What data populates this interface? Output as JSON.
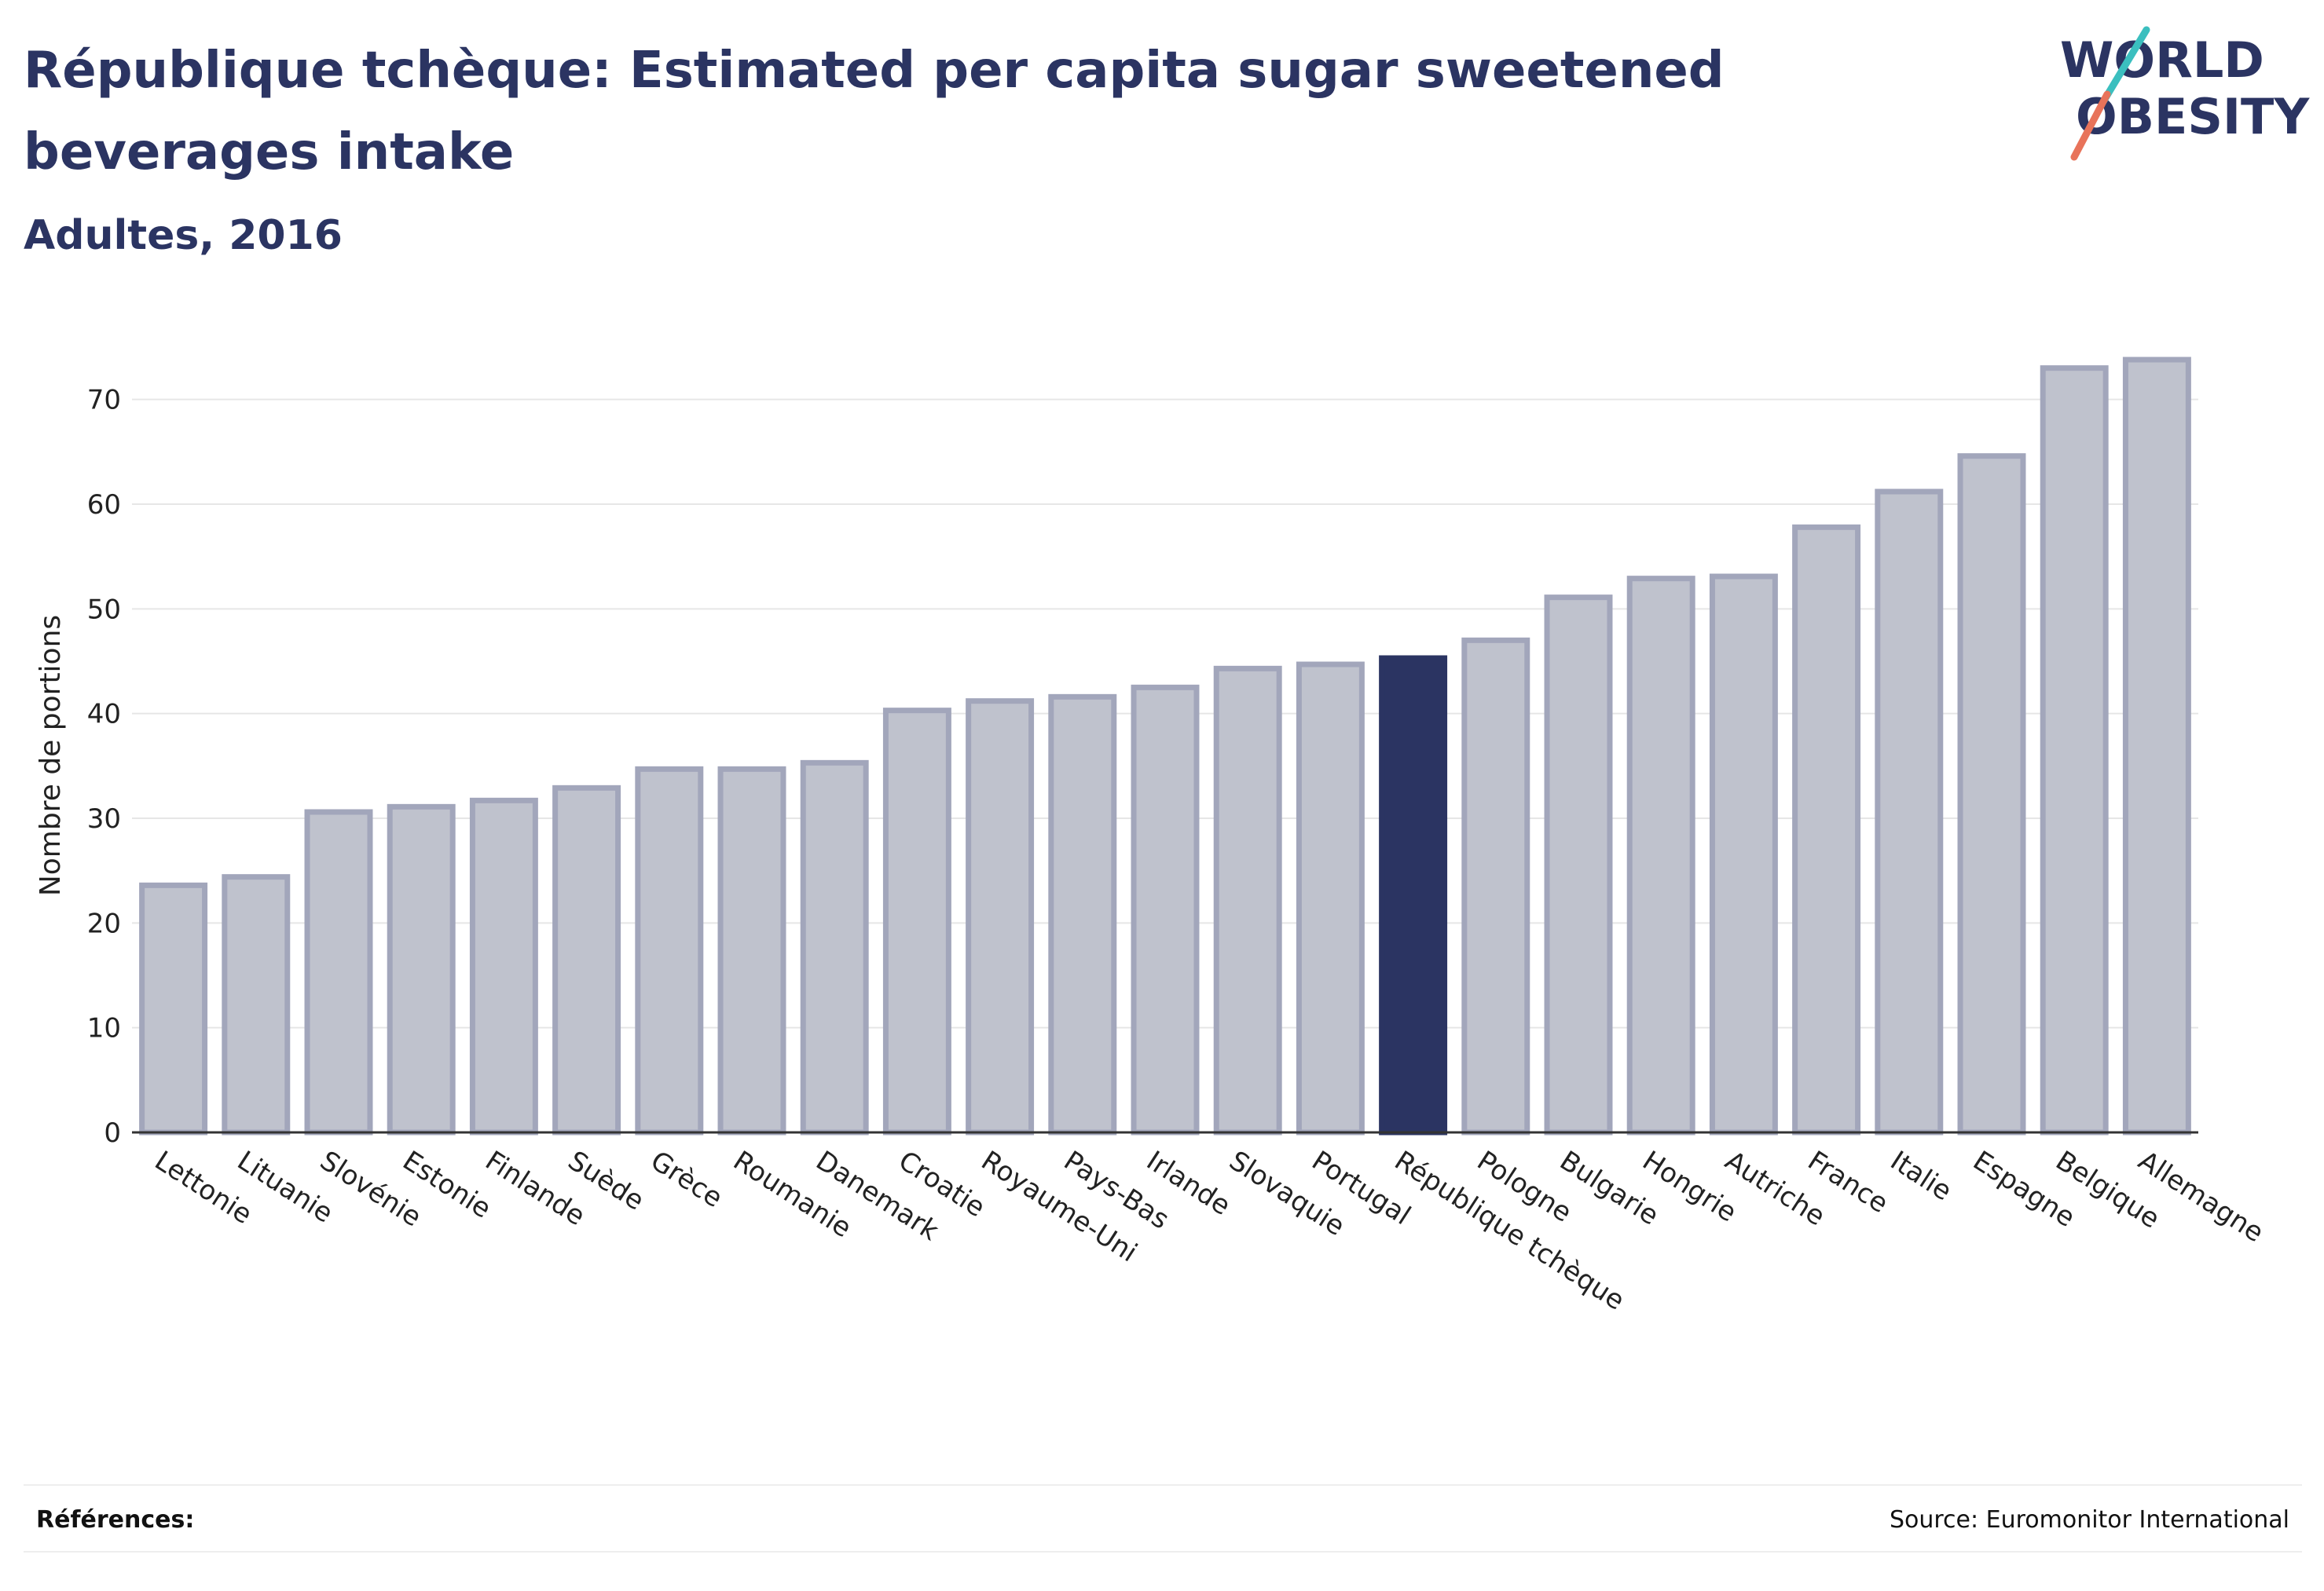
{
  "header": {
    "title": "République tchèque: Estimated per capita sugar sweetened beverages intake",
    "subtitle": "Adultes, 2016"
  },
  "logo": {
    "line1": "WORLD",
    "line2": "OBESITY",
    "text_color": "#2b3462",
    "accent_teal": "#3bbfbf",
    "accent_coral": "#e8735a"
  },
  "footer": {
    "references_label": "Références:",
    "source": "Source: Euromonitor International"
  },
  "colors": {
    "bar_fill": "#bfc2cd",
    "bar_stroke": "#a2a6bb",
    "highlight_fill": "#2b3462",
    "grid": "#e6e6e6",
    "axis": "#333333"
  },
  "chart_data": {
    "type": "bar",
    "title": "République tchèque: Estimated per capita sugar sweetened beverages intake",
    "subtitle": "Adultes, 2016",
    "xlabel": "",
    "ylabel": "Nombre de portions",
    "ylim": [
      0,
      75
    ],
    "yticks": [
      0,
      10,
      20,
      30,
      40,
      50,
      60,
      70
    ],
    "grid": true,
    "highlight": "République tchèque",
    "categories": [
      "Lettonie",
      "Lituanie",
      "Slovénie",
      "Estonie",
      "Finlande",
      "Suède",
      "Grèce",
      "Roumanie",
      "Danemark",
      "Croatie",
      "Royaume-Uni",
      "Pays-Bas",
      "Irlande",
      "Slovaquie",
      "Portugal",
      "République tchèque",
      "Pologne",
      "Bulgarie",
      "Hongrie",
      "Autriche",
      "France",
      "Italie",
      "Espagne",
      "Belgique",
      "Allemagne"
    ],
    "values": [
      23.6,
      24.4,
      30.6,
      31.1,
      31.7,
      32.9,
      34.7,
      34.7,
      35.3,
      40.3,
      41.2,
      41.6,
      42.5,
      44.3,
      44.7,
      45.3,
      47.0,
      51.1,
      52.9,
      53.1,
      57.8,
      61.2,
      64.6,
      73.0,
      73.8
    ]
  }
}
